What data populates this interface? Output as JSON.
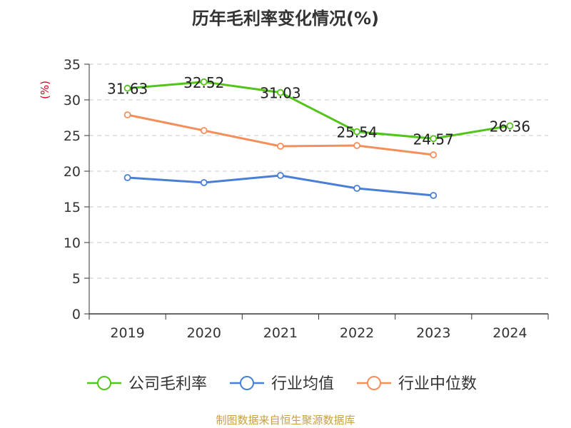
{
  "chart_data": {
    "type": "line",
    "title": "历年毛利率变化情况(%)",
    "ylabel": "(%)",
    "xlabel": "",
    "categories": [
      "2019",
      "2020",
      "2021",
      "2022",
      "2023",
      "2024"
    ],
    "ylim": [
      0,
      35
    ],
    "yticks": [
      0,
      5,
      10,
      15,
      20,
      25,
      30,
      35
    ],
    "grid": true,
    "legend_position": "bottom",
    "series": [
      {
        "name": "公司毛利率",
        "color": "#52c41a",
        "values": [
          31.63,
          32.52,
          31.03,
          25.54,
          24.57,
          26.36
        ],
        "labels": [
          "31.63",
          "32.52",
          "31.03",
          "25.54",
          "24.57",
          "26.36"
        ]
      },
      {
        "name": "行业均值",
        "color": "#4a7fd6",
        "values": [
          19.1,
          18.4,
          19.4,
          17.6,
          16.6,
          null
        ]
      },
      {
        "name": "行业中位数",
        "color": "#f58f5a",
        "values": [
          27.9,
          25.7,
          23.5,
          23.6,
          22.3,
          null
        ]
      }
    ]
  },
  "footer": {
    "source": "制图数据来自恒生聚源数据库"
  }
}
